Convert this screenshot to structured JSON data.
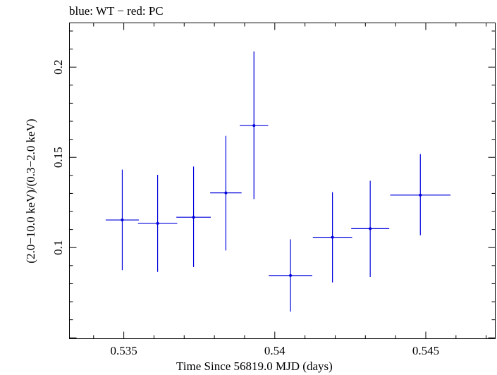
{
  "chart_data": {
    "type": "scatter",
    "title": "blue: WT − red: PC",
    "xlabel": "Time Since 56819.0 MJD (days)",
    "ylabel": "(2.0−10.0 keV)/(0.3−2.0 keV)",
    "xlim": [
      0.5332,
      0.5473
    ],
    "ylim": [
      0.0495,
      0.2245
    ],
    "xticks": [
      {
        "value": 0.535,
        "label": "0.535"
      },
      {
        "value": 0.54,
        "label": "0.54"
      },
      {
        "value": 0.545,
        "label": "0.545"
      }
    ],
    "yticks": [
      {
        "value": 0.1,
        "label": "0.1"
      },
      {
        "value": 0.15,
        "label": "0.15"
      },
      {
        "value": 0.2,
        "label": "0.2"
      }
    ],
    "series": [
      {
        "color": "#0000dd",
        "points": [
          {
            "x": 0.53495,
            "y": 0.1153,
            "xerr": 0.00055,
            "ylo": 0.0875,
            "yhi": 0.1432
          },
          {
            "x": 0.53612,
            "y": 0.1134,
            "xerr": 0.00065,
            "ylo": 0.0865,
            "yhi": 0.1403
          },
          {
            "x": 0.53731,
            "y": 0.1168,
            "xerr": 0.00057,
            "ylo": 0.0892,
            "yhi": 0.1449
          },
          {
            "x": 0.53838,
            "y": 0.1303,
            "xerr": 0.00052,
            "ylo": 0.0984,
            "yhi": 0.1619
          },
          {
            "x": 0.53931,
            "y": 0.1676,
            "xerr": 0.00047,
            "ylo": 0.1269,
            "yhi": 0.2087
          },
          {
            "x": 0.54052,
            "y": 0.0845,
            "xerr": 0.00072,
            "ylo": 0.0645,
            "yhi": 0.1046
          },
          {
            "x": 0.54191,
            "y": 0.1057,
            "xerr": 0.00065,
            "ylo": 0.0807,
            "yhi": 0.1307
          },
          {
            "x": 0.54316,
            "y": 0.1105,
            "xerr": 0.00063,
            "ylo": 0.0837,
            "yhi": 0.137
          },
          {
            "x": 0.54482,
            "y": 0.1291,
            "xerr": 0.001,
            "ylo": 0.1068,
            "yhi": 0.1518
          }
        ]
      }
    ]
  }
}
